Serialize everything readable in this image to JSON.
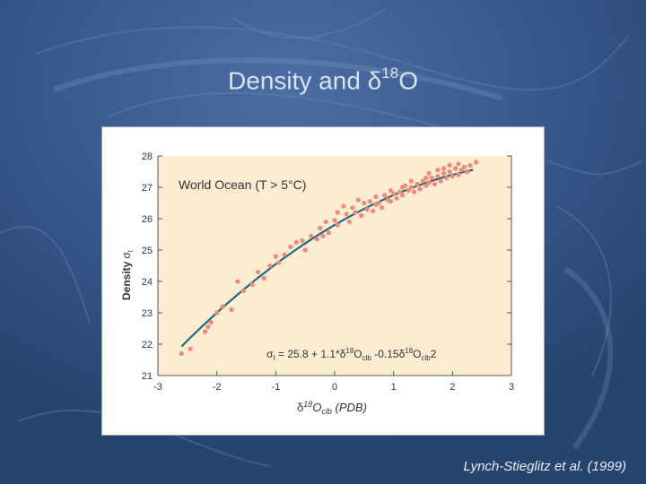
{
  "slide": {
    "title_main": "Density and ",
    "title_delta": "δ",
    "title_sup": "18",
    "title_end": "O",
    "citation": "Lynch-Stieglitz et al. (1999)"
  },
  "colors": {
    "slide_background": "#2e4d7f",
    "plot_background": "#fcecd2",
    "points": "#f08a78",
    "fit_line": "#1b6a8a",
    "axis": "#555555"
  },
  "chart_data": {
    "type": "scatter",
    "title": "World Ocean (T > 5°C)",
    "ylabel": "Density",
    "ylabel_symbol": "σ",
    "ylabel_sub": "t",
    "xlabel_parts": {
      "delta": "δ",
      "sup": "18",
      "main": "O",
      "sub": "clb",
      "unit": " (PDB)"
    },
    "equation_parts": [
      "σ",
      "t",
      " = 25.8 + 1.1*",
      "δ",
      "18",
      "O",
      "clb",
      " -0.15",
      "δ",
      "18",
      "O",
      "clb",
      "2"
    ],
    "xlim": [
      -3,
      3
    ],
    "ylim": [
      21,
      28
    ],
    "xticks": [
      "-3",
      "-2",
      "-1",
      "0",
      "1",
      "2",
      "3"
    ],
    "yticks": [
      "21",
      "22",
      "23",
      "24",
      "25",
      "26",
      "27",
      "28"
    ],
    "grid": false,
    "fit": {
      "a": 25.8,
      "b": 1.1,
      "c": -0.15,
      "x_from": -2.6,
      "x_to": 2.35
    },
    "points": [
      [
        -2.6,
        21.7
      ],
      [
        -2.45,
        21.85
      ],
      [
        -2.2,
        22.4
      ],
      [
        -2.15,
        22.55
      ],
      [
        -2.1,
        22.7
      ],
      [
        -2.0,
        23.0
      ],
      [
        -1.9,
        23.2
      ],
      [
        -1.75,
        23.1
      ],
      [
        -1.65,
        24.0
      ],
      [
        -1.55,
        23.7
      ],
      [
        -1.4,
        23.9
      ],
      [
        -1.3,
        24.3
      ],
      [
        -1.2,
        24.1
      ],
      [
        -1.1,
        24.5
      ],
      [
        -1.0,
        24.8
      ],
      [
        -0.95,
        24.6
      ],
      [
        -0.85,
        24.85
      ],
      [
        -0.75,
        25.1
      ],
      [
        -0.65,
        25.25
      ],
      [
        -0.55,
        25.3
      ],
      [
        -0.5,
        25.0
      ],
      [
        -0.4,
        25.45
      ],
      [
        -0.3,
        25.35
      ],
      [
        -0.25,
        25.7
      ],
      [
        -0.15,
        25.9
      ],
      [
        -0.1,
        25.55
      ],
      [
        0.0,
        25.95
      ],
      [
        0.05,
        25.8
      ],
      [
        0.15,
        26.4
      ],
      [
        0.2,
        26.15
      ],
      [
        0.25,
        25.9
      ],
      [
        0.3,
        26.35
      ],
      [
        0.35,
        26.2
      ],
      [
        0.45,
        26.1
      ],
      [
        0.5,
        26.5
      ],
      [
        0.55,
        26.3
      ],
      [
        0.6,
        26.55
      ],
      [
        0.65,
        26.25
      ],
      [
        0.7,
        26.7
      ],
      [
        0.75,
        26.5
      ],
      [
        0.8,
        26.35
      ],
      [
        0.85,
        26.75
      ],
      [
        0.9,
        26.6
      ],
      [
        0.95,
        26.55
      ],
      [
        1.0,
        26.8
      ],
      [
        1.05,
        26.65
      ],
      [
        1.1,
        26.85
      ],
      [
        1.15,
        26.75
      ],
      [
        1.2,
        27.05
      ],
      [
        1.25,
        26.9
      ],
      [
        1.3,
        27.0
      ],
      [
        1.35,
        26.85
      ],
      [
        1.4,
        27.1
      ],
      [
        1.45,
        26.95
      ],
      [
        1.5,
        27.2
      ],
      [
        1.55,
        27.05
      ],
      [
        1.6,
        27.15
      ],
      [
        1.65,
        27.3
      ],
      [
        1.7,
        27.1
      ],
      [
        1.75,
        27.35
      ],
      [
        1.8,
        27.2
      ],
      [
        1.85,
        27.45
      ],
      [
        1.9,
        27.3
      ],
      [
        1.95,
        27.5
      ],
      [
        2.0,
        27.35
      ],
      [
        2.05,
        27.6
      ],
      [
        2.1,
        27.4
      ],
      [
        2.15,
        27.55
      ],
      [
        2.2,
        27.65
      ],
      [
        2.3,
        27.7
      ],
      [
        2.4,
        27.8
      ],
      [
        1.3,
        27.2
      ],
      [
        1.55,
        27.3
      ],
      [
        1.75,
        27.55
      ],
      [
        1.95,
        27.7
      ],
      [
        2.1,
        27.75
      ],
      [
        0.4,
        26.6
      ],
      [
        0.05,
        26.2
      ],
      [
        0.95,
        26.9
      ],
      [
        1.15,
        27.0
      ],
      [
        1.6,
        27.45
      ],
      [
        1.85,
        27.6
      ],
      [
        2.25,
        27.5
      ],
      [
        -0.2,
        25.45
      ],
      [
        0.7,
        26.45
      ]
    ]
  }
}
